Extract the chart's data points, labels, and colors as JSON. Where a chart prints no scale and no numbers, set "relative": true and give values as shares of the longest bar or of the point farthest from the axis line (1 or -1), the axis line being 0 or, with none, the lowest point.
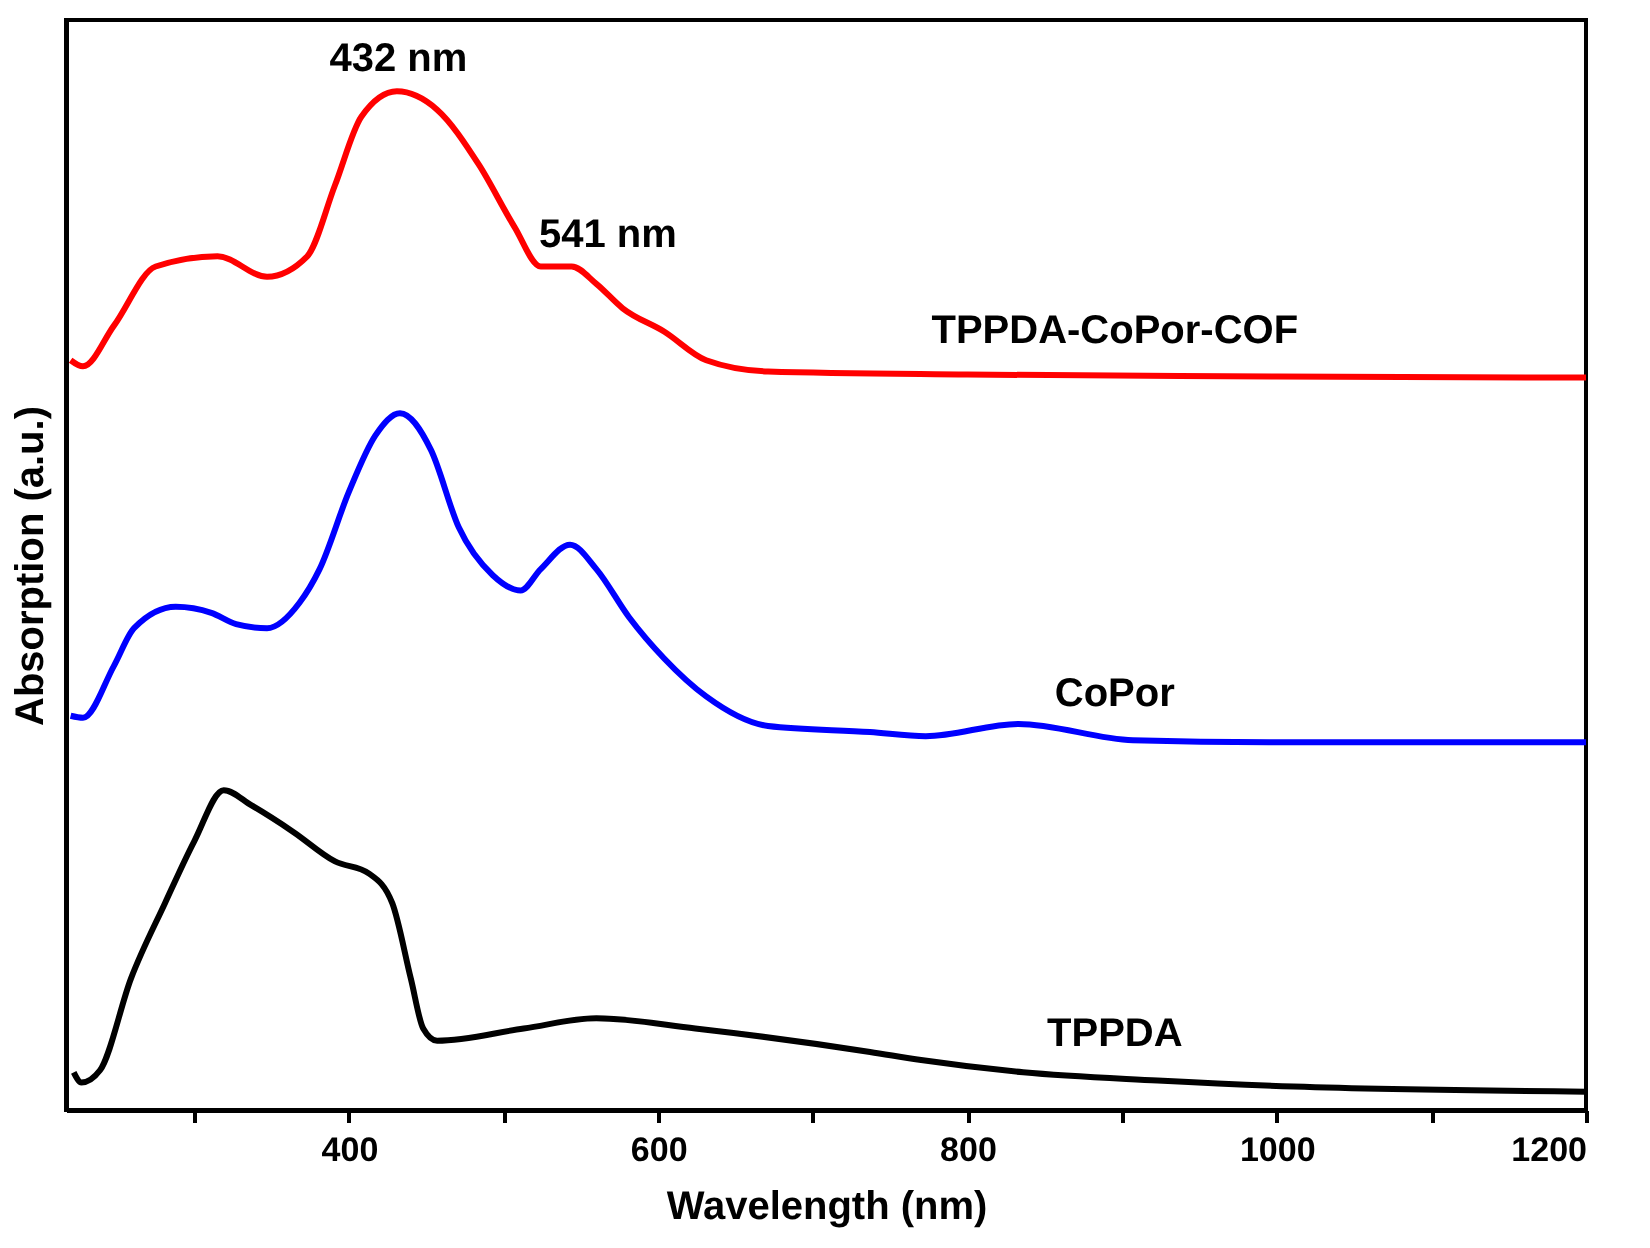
{
  "chart_data": {
    "type": "line",
    "xlabel": "Wavelength (nm)",
    "ylabel": "Absorption (a.u.)",
    "relative": true,
    "grid": false,
    "marker": "none",
    "line_style": "solid",
    "xlim": [
      217,
      1200
    ],
    "xticks": [
      {
        "value": 300,
        "label": null
      },
      400,
      {
        "value": 500,
        "label": null
      },
      600,
      {
        "value": 700,
        "label": null
      },
      800,
      {
        "value": 900,
        "label": null
      },
      1000,
      {
        "value": 1100,
        "label": null
      },
      1200
    ],
    "annotations": [
      {
        "text": "432 nm",
        "x": 432,
        "y": 1.0
      },
      {
        "text": "541 nm",
        "x": 541,
        "y": 0.828
      }
    ],
    "series": [
      {
        "name": "TPPDA-CoPor-COF",
        "color": "#ff0000",
        "x": [
          220,
          228,
          248,
          275,
          315,
          347,
          373,
          391,
          408,
          431,
          457,
          484,
          507,
          524,
          544,
          560,
          577,
          604,
          631,
          671,
          800,
          1000,
          1200
        ],
        "values": [
          0.736,
          0.73,
          0.77,
          0.828,
          0.838,
          0.818,
          0.838,
          0.908,
          0.975,
          1.0,
          0.982,
          0.928,
          0.867,
          0.828,
          0.828,
          0.811,
          0.787,
          0.764,
          0.736,
          0.725,
          0.722,
          0.72,
          0.719
        ]
      },
      {
        "name": "CoPor",
        "color": "#0000ff",
        "x": [
          220,
          228,
          248,
          261,
          288,
          311,
          327,
          347,
          368,
          381,
          400,
          417,
          433,
          453,
          471,
          493,
          511,
          524,
          543,
          560,
          581,
          604,
          631,
          671,
          737,
          773,
          833,
          907,
          995,
          1200
        ],
        "values": [
          0.387,
          0.385,
          0.436,
          0.473,
          0.494,
          0.488,
          0.477,
          0.473,
          0.498,
          0.531,
          0.607,
          0.662,
          0.684,
          0.648,
          0.572,
          0.525,
          0.51,
          0.531,
          0.555,
          0.531,
          0.484,
          0.443,
          0.406,
          0.377,
          0.371,
          0.367,
          0.379,
          0.363,
          0.361,
          0.361
        ]
      },
      {
        "name": "TPPDA",
        "color": "#000000",
        "x": [
          222,
          227,
          239,
          259,
          281,
          300,
          319,
          337,
          364,
          391,
          413,
          428,
          440,
          448,
          457,
          513,
          560,
          624,
          737,
          770,
          836,
          923,
          1011,
          1200
        ],
        "values": [
          0.037,
          0.027,
          0.039,
          0.129,
          0.203,
          0.264,
          0.314,
          0.299,
          0.273,
          0.244,
          0.232,
          0.203,
          0.129,
          0.08,
          0.068,
          0.08,
          0.09,
          0.08,
          0.057,
          0.049,
          0.037,
          0.029,
          0.023,
          0.018
        ]
      }
    ]
  }
}
